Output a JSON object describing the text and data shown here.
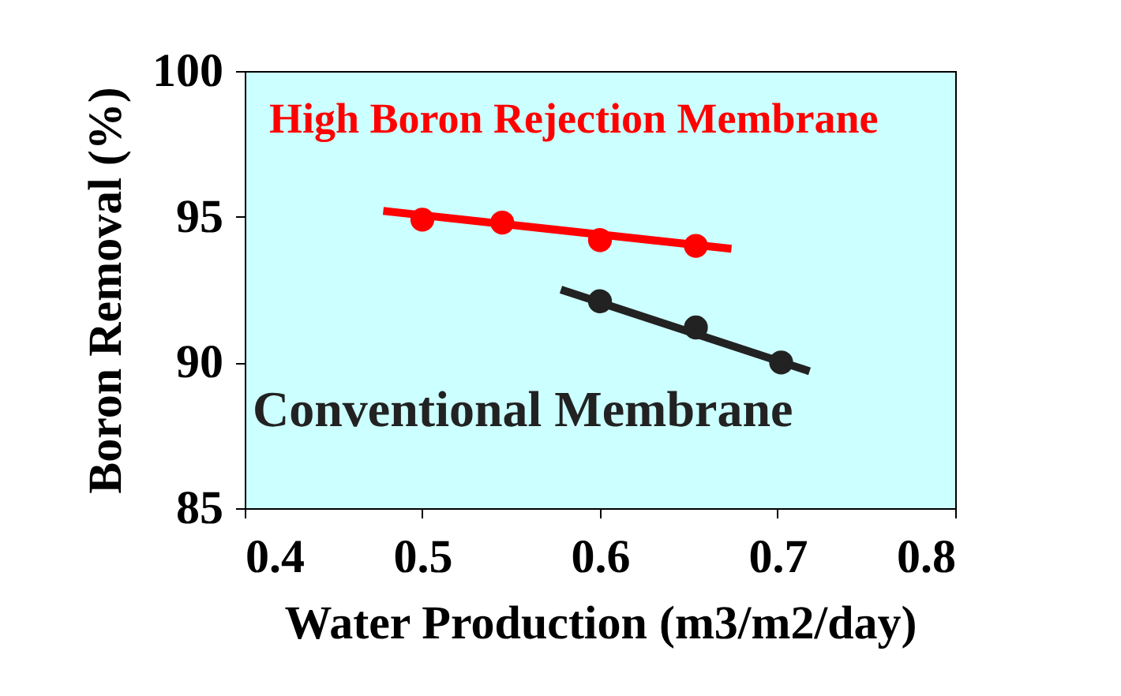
{
  "chart_data": {
    "type": "scatter",
    "xlabel": "Water Production (m3/m2/day)",
    "ylabel": "Boron Removal (%)",
    "xlim": [
      0.4,
      0.8
    ],
    "xticks": [
      0.4,
      0.5,
      0.6,
      0.7,
      0.8
    ],
    "ylim": [
      85,
      100
    ],
    "yticks": [
      85,
      90,
      95,
      100
    ],
    "grid": false,
    "legend": false,
    "marker": "circle",
    "series": [
      {
        "name": "High Boron Rejection Membrane",
        "color": "#ff0000",
        "x": [
          0.5,
          0.545,
          0.6,
          0.654
        ],
        "values": [
          94.9,
          94.8,
          94.2,
          94.0
        ]
      },
      {
        "type": "line",
        "color": "#ff0000",
        "line_style": "solid",
        "marker": "none",
        "x": [
          0.478,
          0.674
        ],
        "values": [
          95.2,
          93.9
        ]
      },
      {
        "name": "Conventional Membrane",
        "color": "#222222",
        "x": [
          0.6,
          0.654,
          0.702
        ],
        "values": [
          92.1,
          91.2,
          90.0
        ]
      },
      {
        "type": "line",
        "color": "#222222",
        "line_style": "solid",
        "marker": "none",
        "x": [
          0.578,
          0.718
        ],
        "values": [
          92.5,
          89.7
        ]
      }
    ]
  }
}
